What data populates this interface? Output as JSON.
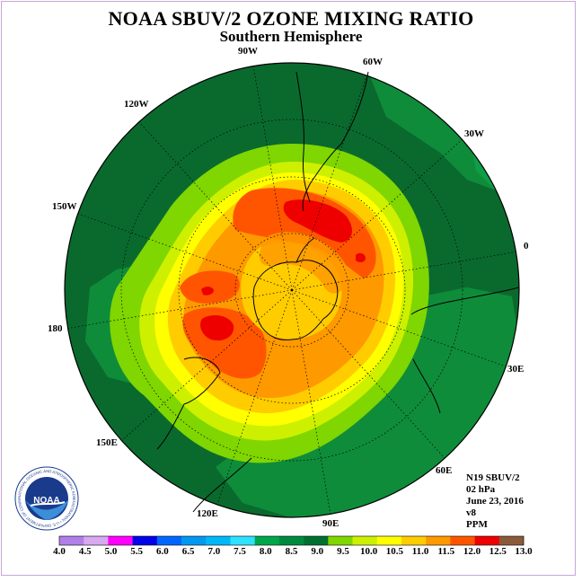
{
  "title": "NOAA SBUV/2 OZONE MIXING RATIO",
  "subtitle": "Southern Hemisphere",
  "longitude_labels": [
    "90W",
    "60W",
    "30W",
    "0",
    "30E",
    "60E",
    "90E",
    "120E",
    "150E",
    "180",
    "150W",
    "120W"
  ],
  "info": {
    "satellite": "N19 SBUV/2",
    "level": "02 hPa",
    "date": "June 23, 2016",
    "version": "v8",
    "units": "PPM"
  },
  "logo": {
    "text": "NOAA",
    "ring_text": "NATIONAL OCEANIC AND ATMOSPHERIC ADMINISTRATION • U.S. DEPARTMENT OF COMMERCE"
  },
  "colorbar": {
    "ticks": [
      "4.0",
      "4.5",
      "5.0",
      "5.5",
      "6.0",
      "6.5",
      "7.0",
      "7.5",
      "8.0",
      "8.5",
      "9.0",
      "9.5",
      "10.0",
      "10.5",
      "11.0",
      "11.5",
      "12.0",
      "12.5",
      "13.0"
    ],
    "colors": [
      "#b07fe8",
      "#d8a8f0",
      "#ff00ff",
      "#0000e8",
      "#0066ff",
      "#0098f0",
      "#00b8f8",
      "#30e0ff",
      "#00a64a",
      "#008a3e",
      "#007030",
      "#7fd600",
      "#ccf000",
      "#ffff00",
      "#ffcc00",
      "#ff9900",
      "#ff5500",
      "#ee0000",
      "#8b5a3c"
    ]
  },
  "map_colors": {
    "ocean_dark": "#0a6a2e",
    "mid_green": "#0f8c3a",
    "light_green": "#0d9e46"
  }
}
